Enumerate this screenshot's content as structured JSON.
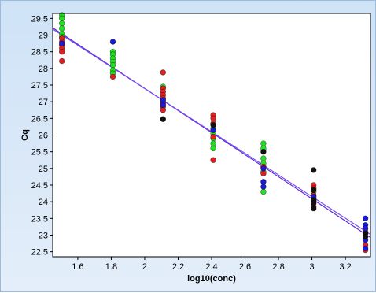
{
  "chart_data": {
    "type": "scatter",
    "title": "",
    "xlabel": "log10(conc)",
    "ylabel": "Cq",
    "xlim": [
      1.45,
      3.35
    ],
    "ylim": [
      22.35,
      29.65
    ],
    "x_ticks": [
      1.6,
      1.8,
      2,
      2.2,
      2.4,
      2.6,
      2.8,
      3,
      3.2
    ],
    "x_tick_labels": [
      "1.6",
      "1.8",
      "2",
      "2.2",
      "2.4",
      "2.6",
      "2.8",
      "3",
      "3.2"
    ],
    "y_ticks": [
      22.5,
      23,
      23.5,
      24,
      24.5,
      25,
      25.5,
      26,
      26.5,
      27,
      27.5,
      28,
      28.5,
      29,
      29.5
    ],
    "y_tick_labels": [
      "22.5",
      "23",
      "23.5",
      "24",
      "24.5",
      "25",
      "25.5",
      "26",
      "26.5",
      "27",
      "27.5",
      "28",
      "28.5",
      "29",
      "29.5"
    ],
    "grid": false,
    "colors": {
      "plot_background": "#ffffff",
      "fit_line": "#5a2bd6",
      "fit_line_2": "#7a4ef0"
    },
    "series": [
      {
        "color": "#22e022",
        "points": [
          [
            1.505,
            29.6
          ],
          [
            1.505,
            29.5
          ],
          [
            1.505,
            29.35
          ],
          [
            1.505,
            29.2
          ],
          [
            1.505,
            29.05
          ],
          [
            1.505,
            28.95
          ],
          [
            1.81,
            28.5
          ],
          [
            1.81,
            28.42
          ],
          [
            1.81,
            28.3
          ],
          [
            1.81,
            28.2
          ],
          [
            1.81,
            28.1
          ],
          [
            1.81,
            27.95
          ],
          [
            1.81,
            27.85
          ],
          [
            2.11,
            27.45
          ],
          [
            2.11,
            27.0
          ],
          [
            2.41,
            26.2
          ],
          [
            2.41,
            26.05
          ],
          [
            2.41,
            25.9
          ],
          [
            2.41,
            25.75
          ],
          [
            2.41,
            25.6
          ],
          [
            2.71,
            25.75
          ],
          [
            2.71,
            25.6
          ],
          [
            2.71,
            25.3
          ],
          [
            2.71,
            25.15
          ],
          [
            2.71,
            24.9
          ],
          [
            2.71,
            24.3
          ],
          [
            3.01,
            24.3
          ],
          [
            3.01,
            24.1
          ]
        ]
      },
      {
        "color": "#e02020",
        "points": [
          [
            1.505,
            28.9
          ],
          [
            1.505,
            28.8
          ],
          [
            1.505,
            28.7
          ],
          [
            1.505,
            28.6
          ],
          [
            1.505,
            28.5
          ],
          [
            1.505,
            28.22
          ],
          [
            1.81,
            27.75
          ],
          [
            2.11,
            27.88
          ],
          [
            2.11,
            27.4
          ],
          [
            2.11,
            27.3
          ],
          [
            2.11,
            27.2
          ],
          [
            2.11,
            27.1
          ],
          [
            2.11,
            26.95
          ],
          [
            2.11,
            26.85
          ],
          [
            2.11,
            26.75
          ],
          [
            2.41,
            26.6
          ],
          [
            2.41,
            26.5
          ],
          [
            2.41,
            26.35
          ],
          [
            2.41,
            25.95
          ],
          [
            2.41,
            25.25
          ],
          [
            2.71,
            25.05
          ],
          [
            2.71,
            24.85
          ],
          [
            3.01,
            24.5
          ],
          [
            3.01,
            24.4
          ],
          [
            3.01,
            24.2
          ],
          [
            3.01,
            24.0
          ],
          [
            3.01,
            23.85
          ],
          [
            3.32,
            23.1
          ],
          [
            3.32,
            22.7
          ],
          [
            3.32,
            22.55
          ]
        ]
      },
      {
        "color": "#1a1ad0",
        "points": [
          [
            1.505,
            28.75
          ],
          [
            1.81,
            28.8
          ],
          [
            2.11,
            27.05
          ],
          [
            2.11,
            26.9
          ],
          [
            2.41,
            26.15
          ],
          [
            2.71,
            25.0
          ],
          [
            2.71,
            24.6
          ],
          [
            2.71,
            24.45
          ],
          [
            3.01,
            24.15
          ],
          [
            3.32,
            23.5
          ],
          [
            3.32,
            23.3
          ],
          [
            3.32,
            23.2
          ],
          [
            3.32,
            22.85
          ],
          [
            3.32,
            22.6
          ]
        ]
      },
      {
        "color": "#111111",
        "points": [
          [
            2.11,
            26.48
          ],
          [
            2.41,
            26.3
          ],
          [
            2.71,
            25.5
          ],
          [
            3.01,
            24.95
          ],
          [
            3.01,
            24.35
          ],
          [
            3.01,
            24.05
          ],
          [
            3.01,
            23.95
          ],
          [
            3.01,
            23.8
          ],
          [
            3.32,
            23.05
          ],
          [
            3.32,
            22.95
          ]
        ]
      }
    ],
    "fit_lines": [
      {
        "color": "#5a2bd6",
        "x": [
          1.45,
          3.35
        ],
        "y": [
          29.22,
          22.93
        ]
      },
      {
        "color": "#7a4ef0",
        "x": [
          1.45,
          3.35
        ],
        "y": [
          29.18,
          23.02
        ]
      }
    ]
  }
}
